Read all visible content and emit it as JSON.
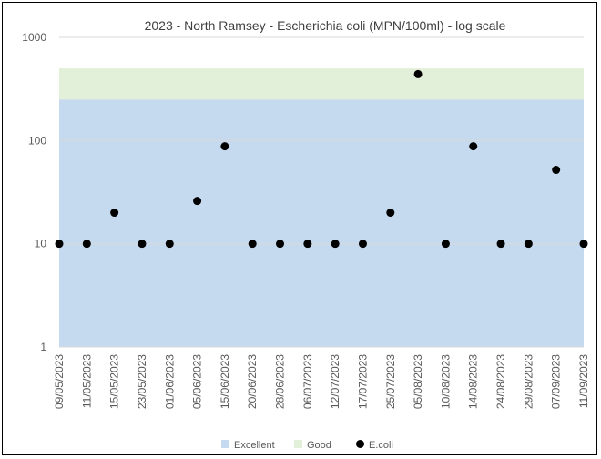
{
  "chart_data": {
    "type": "scatter",
    "title": "2023 - North Ramsey - Escherichia coli (MPN/100ml) - log scale",
    "xlabel": "",
    "ylabel": "",
    "y_scale": "log",
    "ylim": [
      1,
      1000
    ],
    "y_ticks": [
      "1",
      "10",
      "100",
      "1000"
    ],
    "grid": true,
    "legend_position": "bottom",
    "categories": [
      "09/05/2023",
      "11/05/2023",
      "15/05/2023",
      "23/05/2023",
      "01/06/2023",
      "05/06/2023",
      "15/06/2023",
      "20/06/2023",
      "28/06/2023",
      "06/07/2023",
      "12/07/2023",
      "17/07/2023",
      "25/07/2023",
      "05/08/2023",
      "10/08/2023",
      "14/08/2023",
      "24/08/2023",
      "29/08/2023",
      "07/09/2023",
      "11/09/2023"
    ],
    "bands": [
      {
        "name": "Excellent",
        "from": 1,
        "to": 250,
        "color": "#c5d9ef"
      },
      {
        "name": "Good",
        "from": 250,
        "to": 500,
        "color": "#e2efd9"
      }
    ],
    "series": [
      {
        "name": "E.coli",
        "color": "#000000",
        "values": [
          10,
          10,
          20,
          10,
          10,
          26,
          88,
          10,
          10,
          10,
          10,
          10,
          20,
          440,
          10,
          88,
          10,
          10,
          52,
          10
        ]
      }
    ]
  }
}
